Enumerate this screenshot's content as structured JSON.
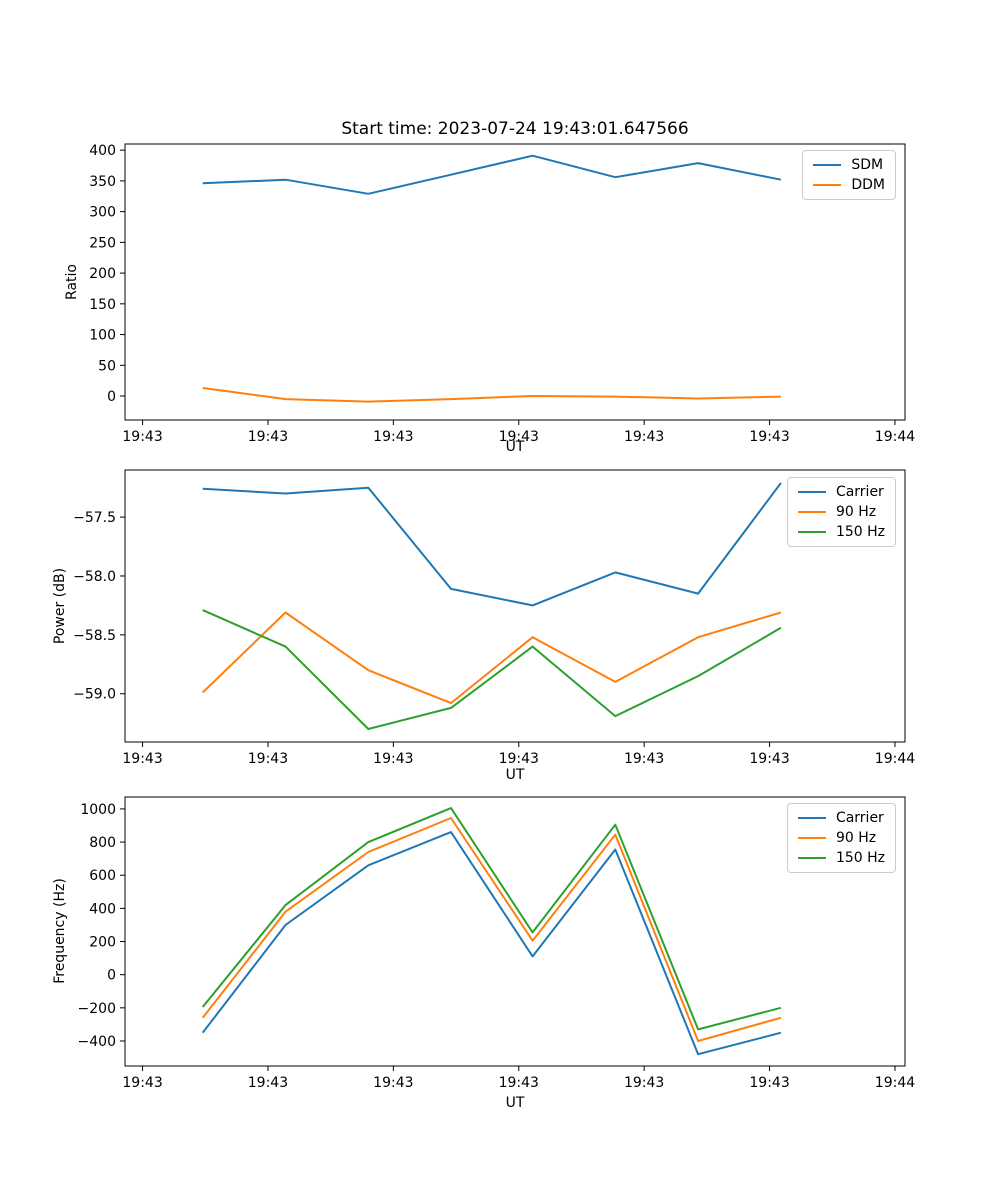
{
  "colors": {
    "background": "#ffffff",
    "axis": "#000000",
    "legend_border": "#cccccc",
    "series_blue": "#1f77b4",
    "series_orange": "#ff7f0e",
    "series_green": "#2ca02c"
  },
  "chart_data": [
    {
      "type": "line",
      "title": "Start time: 2023-07-24 19:43:01.647566",
      "xlabel": "UT",
      "ylabel": "Ratio",
      "legend_position": "upper right",
      "grid": false,
      "x_seconds": [
        4.8,
        11.4,
        18.0,
        24.6,
        31.1,
        37.7,
        44.3,
        50.9
      ],
      "xlim": [
        -1.4,
        60.8
      ],
      "ylim": [
        -39,
        410
      ],
      "xticks": {
        "seconds": [
          0,
          10,
          20,
          30,
          40,
          50,
          60
        ],
        "labels": [
          "19:43",
          "19:43",
          "19:43",
          "19:43",
          "19:43",
          "19:43",
          "19:44"
        ]
      },
      "yticks": {
        "values": [
          400,
          350,
          300,
          250,
          200,
          150,
          100,
          50,
          0
        ],
        "labels": [
          "400",
          "350",
          "300",
          "250",
          "200",
          "150",
          "100",
          "50",
          "0"
        ]
      },
      "series": [
        {
          "name": "SDM",
          "color": "#1f77b4",
          "values": [
            346,
            352,
            329,
            360,
            391,
            356,
            379,
            352
          ]
        },
        {
          "name": "DDM",
          "color": "#ff7f0e",
          "values": [
            13,
            -5,
            -9,
            -5,
            0,
            -1,
            -4,
            -1
          ]
        }
      ]
    },
    {
      "type": "line",
      "title": "",
      "xlabel": "UT",
      "ylabel": "Power (dB)",
      "legend_position": "upper right",
      "grid": false,
      "x_seconds": [
        4.8,
        11.4,
        18.0,
        24.6,
        31.1,
        37.7,
        44.3,
        50.9
      ],
      "xlim": [
        -1.4,
        60.8
      ],
      "ylim": [
        -59.41,
        -57.1
      ],
      "xticks": {
        "seconds": [
          0,
          10,
          20,
          30,
          40,
          50,
          60
        ],
        "labels": [
          "19:43",
          "19:43",
          "19:43",
          "19:43",
          "19:43",
          "19:43",
          "19:44"
        ]
      },
      "yticks": {
        "values": [
          -57.5,
          -58.0,
          -58.5,
          -59.0
        ],
        "labels": [
          "−57.5",
          "−58.0",
          "−58.5",
          "−59.0"
        ]
      },
      "series": [
        {
          "name": "Carrier",
          "color": "#1f77b4",
          "values": [
            -57.26,
            -57.3,
            -57.25,
            -58.11,
            -58.25,
            -57.97,
            -58.15,
            -57.21
          ]
        },
        {
          "name": "90 Hz",
          "color": "#ff7f0e",
          "values": [
            -58.99,
            -58.31,
            -58.8,
            -59.08,
            -58.52,
            -58.9,
            -58.52,
            -58.31
          ]
        },
        {
          "name": "150 Hz",
          "color": "#2ca02c",
          "values": [
            -58.29,
            -58.6,
            -59.3,
            -59.12,
            -58.6,
            -59.19,
            -58.85,
            -58.44
          ]
        }
      ]
    },
    {
      "type": "line",
      "title": "",
      "xlabel": "UT",
      "ylabel": "Frequency (Hz)",
      "legend_position": "upper right",
      "grid": false,
      "x_seconds": [
        4.8,
        11.4,
        18.0,
        24.6,
        31.1,
        37.7,
        44.3,
        50.9
      ],
      "xlim": [
        -1.4,
        60.8
      ],
      "ylim": [
        -551,
        1072
      ],
      "xticks": {
        "seconds": [
          0,
          10,
          20,
          30,
          40,
          50,
          60
        ],
        "labels": [
          "19:43",
          "19:43",
          "19:43",
          "19:43",
          "19:43",
          "19:43",
          "19:44"
        ]
      },
      "yticks": {
        "values": [
          1000,
          800,
          600,
          400,
          200,
          0,
          -200,
          -400
        ],
        "labels": [
          "1000",
          "800",
          "600",
          "400",
          "200",
          "0",
          "−200",
          "−400"
        ]
      },
      "series": [
        {
          "name": "Carrier",
          "color": "#1f77b4",
          "values": [
            -350,
            300,
            660,
            860,
            110,
            755,
            -480,
            -350
          ]
        },
        {
          "name": "90 Hz",
          "color": "#ff7f0e",
          "values": [
            -260,
            380,
            740,
            945,
            205,
            845,
            -400,
            -260
          ]
        },
        {
          "name": "150 Hz",
          "color": "#2ca02c",
          "values": [
            -195,
            420,
            800,
            1005,
            255,
            905,
            -330,
            -200
          ]
        }
      ]
    }
  ]
}
